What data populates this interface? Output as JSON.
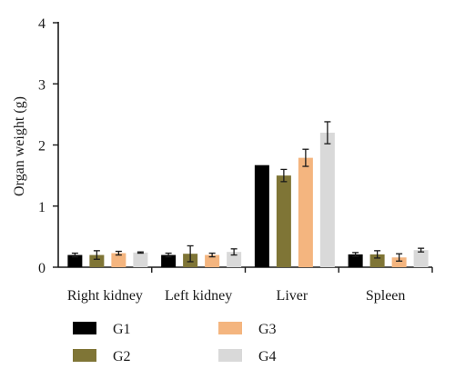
{
  "chart_data": {
    "type": "bar",
    "title": "",
    "xlabel": "",
    "ylabel": "Organ weight (g)",
    "ylim": [
      0,
      4
    ],
    "yticks": [
      "0",
      "1",
      "2",
      "3",
      "4"
    ],
    "categories": [
      "Right kidney",
      "Left kidney",
      "Liver",
      "Spleen"
    ],
    "series": [
      {
        "name": "G1",
        "color": "#000000",
        "values": [
          0.2,
          0.2,
          1.67,
          0.21
        ],
        "errors": [
          0.03,
          0.03,
          0.0,
          0.03
        ]
      },
      {
        "name": "G2",
        "color": "#7f7536",
        "values": [
          0.2,
          0.22,
          1.5,
          0.21
        ],
        "errors": [
          0.07,
          0.13,
          0.1,
          0.06
        ]
      },
      {
        "name": "G3",
        "color": "#f4b57f",
        "values": [
          0.23,
          0.2,
          1.79,
          0.16
        ],
        "errors": [
          0.03,
          0.03,
          0.14,
          0.06
        ]
      },
      {
        "name": "G4",
        "color": "#d9d9d9",
        "values": [
          0.24,
          0.25,
          2.2,
          0.28
        ],
        "errors": [
          0.01,
          0.05,
          0.18,
          0.03
        ]
      }
    ],
    "grid": false,
    "legend_position": "bottom"
  }
}
